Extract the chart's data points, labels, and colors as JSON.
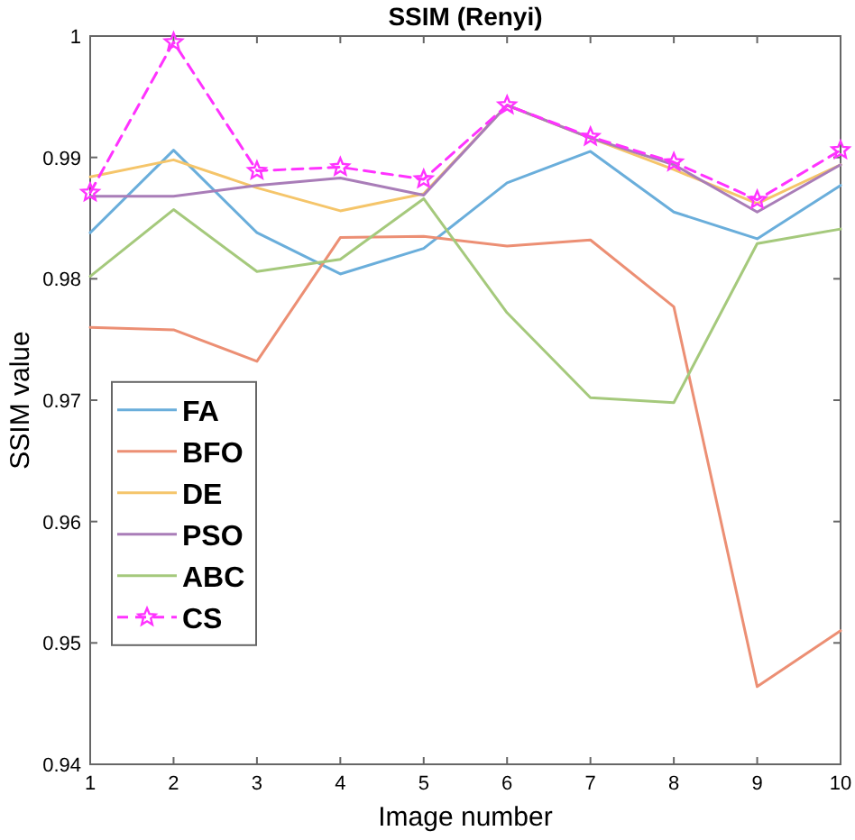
{
  "chart_data": {
    "type": "line",
    "title": "SSIM (Renyi)",
    "xlabel": "Image number",
    "ylabel": "SSIM value",
    "x": [
      1,
      2,
      3,
      4,
      5,
      6,
      7,
      8,
      9,
      10
    ],
    "xlim": [
      1,
      10
    ],
    "xticks": [
      1,
      2,
      3,
      4,
      5,
      6,
      7,
      8,
      9,
      10
    ],
    "ylim": [
      0.94,
      1
    ],
    "yticks": [
      0.94,
      0.95,
      0.96,
      0.97,
      0.98,
      0.99,
      1
    ],
    "grid": false,
    "legend": "left",
    "marker": "none",
    "line_style": "solid",
    "series": [
      {
        "name": "FA",
        "color": "#6aaedb",
        "values": [
          0.9838,
          0.9906,
          0.9838,
          0.9804,
          0.9825,
          0.9879,
          0.9905,
          0.9855,
          0.9833,
          0.9877
        ]
      },
      {
        "name": "BFO",
        "color": "#ec8f74",
        "values": [
          0.976,
          0.9758,
          0.9732,
          0.9834,
          0.9835,
          0.9827,
          0.9832,
          0.9777,
          0.9464,
          0.951
        ]
      },
      {
        "name": "DE",
        "color": "#f5c56a",
        "values": [
          0.9884,
          0.9898,
          0.9875,
          0.9856,
          0.987,
          0.9943,
          0.9916,
          0.989,
          0.9862,
          0.9894
        ]
      },
      {
        "name": "PSO",
        "color": "#a97db8",
        "values": [
          0.9868,
          0.9868,
          0.9877,
          0.9883,
          0.9869,
          0.9943,
          0.9916,
          0.9894,
          0.9855,
          0.9894
        ]
      },
      {
        "name": "ABC",
        "color": "#a5c97c",
        "values": [
          0.9802,
          0.9857,
          0.9806,
          0.9816,
          0.9866,
          0.9772,
          0.9702,
          0.9698,
          0.9829,
          0.9841
        ]
      },
      {
        "name": "CS",
        "color": "#ff33ff",
        "marker": "star",
        "line_style": "dashed",
        "values": [
          0.9871,
          0.9995,
          0.9889,
          0.9892,
          0.9882,
          0.9943,
          0.9917,
          0.9896,
          0.9865,
          0.9906
        ]
      }
    ]
  }
}
